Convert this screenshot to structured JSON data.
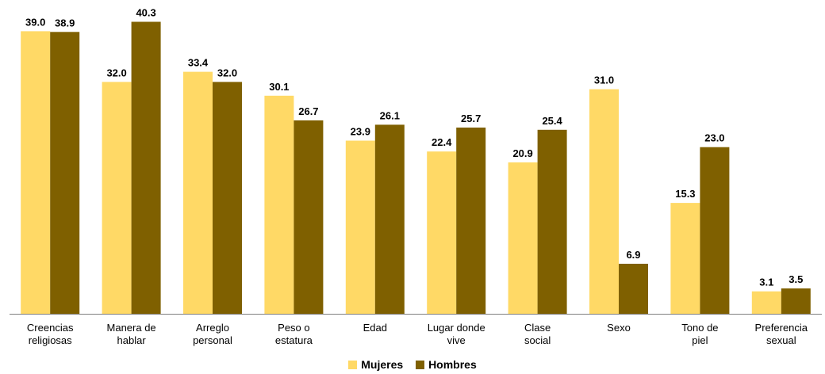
{
  "chart_data": {
    "type": "bar",
    "categories": [
      [
        "Creencias",
        "religiosas"
      ],
      [
        "Manera de",
        "hablar"
      ],
      [
        "Arreglo",
        "personal"
      ],
      [
        "Peso o",
        "estatura"
      ],
      [
        "Edad"
      ],
      [
        "Lugar donde",
        "vive"
      ],
      [
        "Clase",
        "social"
      ],
      [
        "Sexo"
      ],
      [
        "Tono de",
        "piel"
      ],
      [
        "Preferencia",
        "sexual"
      ]
    ],
    "series": [
      {
        "name": "Mujeres",
        "color": "#FFD966",
        "values": [
          39.0,
          32.0,
          33.4,
          30.1,
          23.9,
          22.4,
          20.9,
          31.0,
          15.3,
          3.1
        ]
      },
      {
        "name": "Hombres",
        "color": "#7F6000",
        "values": [
          38.9,
          40.3,
          32.0,
          26.7,
          26.1,
          25.7,
          25.4,
          6.9,
          23.0,
          3.5
        ]
      }
    ],
    "ylim": [
      0,
      42
    ],
    "grid": false,
    "legend_position": "bottom-center"
  }
}
